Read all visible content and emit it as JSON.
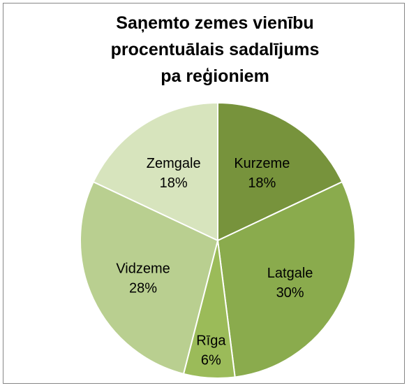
{
  "chart_data": {
    "type": "pie",
    "title": "Saņemto zemes vienību procentuālais sadalījums pa reģioniem",
    "categories": [
      "Kurzeme",
      "Latgale",
      "Rīga",
      "Vidzeme",
      "Zemgale"
    ],
    "values": [
      18,
      30,
      6,
      28,
      18
    ],
    "value_labels": [
      "18%",
      "30%",
      "6%",
      "28%",
      "18%"
    ],
    "colors": [
      "#77933c",
      "#8aab4d",
      "#9bbb59",
      "#b9cf90",
      "#d7e4bd"
    ]
  }
}
